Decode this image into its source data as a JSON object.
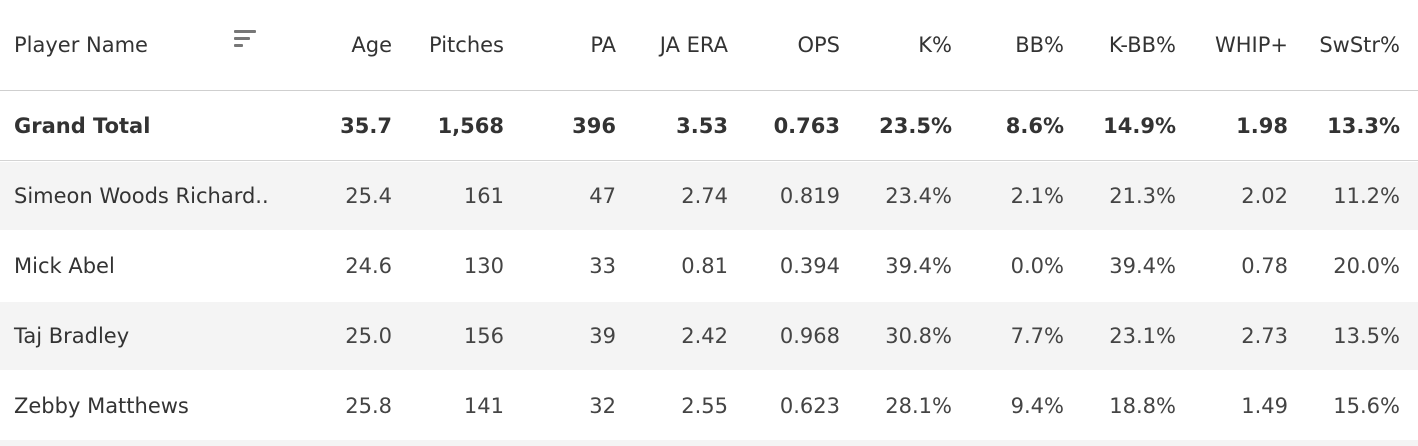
{
  "chart_data": {
    "type": "table",
    "columns": [
      "Player Name",
      "Age",
      "Pitches",
      "PA",
      "JA ERA",
      "OPS",
      "K%",
      "BB%",
      "K-BB%",
      "WHIP+",
      "SwStr%"
    ],
    "grand_total": {
      "label": "Grand Total",
      "values": [
        "35.7",
        "1,568",
        "396",
        "3.53",
        "0.763",
        "23.5%",
        "8.6%",
        "14.9%",
        "1.98",
        "13.3%"
      ]
    },
    "rows": [
      {
        "name": "Simeon Woods Richard..",
        "values": [
          "25.4",
          "161",
          "47",
          "2.74",
          "0.819",
          "23.4%",
          "2.1%",
          "21.3%",
          "2.02",
          "11.2%"
        ]
      },
      {
        "name": "Mick Abel",
        "values": [
          "24.6",
          "130",
          "33",
          "0.81",
          "0.394",
          "39.4%",
          "0.0%",
          "39.4%",
          "0.78",
          "20.0%"
        ]
      },
      {
        "name": "Taj Bradley",
        "values": [
          "25.0",
          "156",
          "39",
          "2.42",
          "0.968",
          "30.8%",
          "7.7%",
          "23.1%",
          "2.73",
          "13.5%"
        ]
      },
      {
        "name": "Zebby Matthews",
        "values": [
          "25.8",
          "141",
          "32",
          "2.55",
          "0.623",
          "28.1%",
          "9.4%",
          "18.8%",
          "1.49",
          "15.6%"
        ]
      }
    ]
  },
  "icons": {
    "sort": "sort-icon"
  },
  "colors": {
    "stripe": "#f4f4f4",
    "text": "#333333",
    "divider": "#d4d4d4"
  }
}
